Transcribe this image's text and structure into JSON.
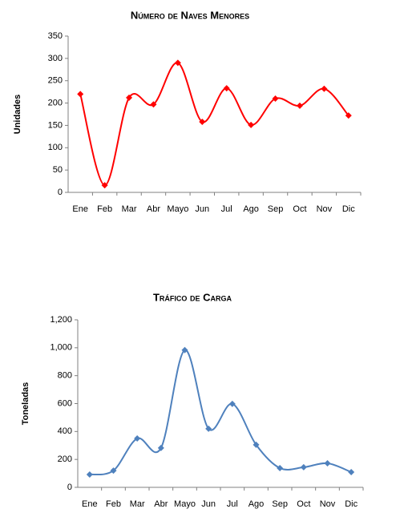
{
  "chart_data": [
    {
      "type": "line",
      "title": "Número de Naves Menores",
      "y_label": "Unidades",
      "categories": [
        "Ene",
        "Feb",
        "Mar",
        "Abr",
        "Mayo",
        "Jun",
        "Jul",
        "Ago",
        "Sep",
        "Oct",
        "Nov",
        "Dic"
      ],
      "series": [
        {
          "name": "Naves Menores",
          "color": "#ff0000",
          "values": [
            220,
            16,
            212,
            197,
            290,
            158,
            233,
            151,
            210,
            194,
            232,
            172
          ]
        }
      ],
      "ylim": [
        0,
        350
      ],
      "yticks": [
        0,
        50,
        100,
        150,
        200,
        250,
        300,
        350
      ],
      "grid": false,
      "smooth": true
    },
    {
      "type": "line",
      "title": "Tráfico de Carga",
      "y_label": "Toneladas",
      "categories": [
        "Ene",
        "Feb",
        "Mar",
        "Abr",
        "Mayo",
        "Jun",
        "Jul",
        "Ago",
        "Sep",
        "Oct",
        "Nov",
        "Dic"
      ],
      "series": [
        {
          "name": "Carga",
          "color": "#4f81bd",
          "values": [
            92,
            120,
            350,
            282,
            983,
            420,
            598,
            305,
            138,
            144,
            172,
            109
          ]
        }
      ],
      "ylim": [
        0,
        1200
      ],
      "yticks": [
        0,
        200,
        400,
        600,
        800,
        {
          "value": 1000,
          "label": "1,000"
        },
        {
          "value": 1200,
          "label": "1,200"
        }
      ],
      "grid": false,
      "smooth": true
    }
  ]
}
